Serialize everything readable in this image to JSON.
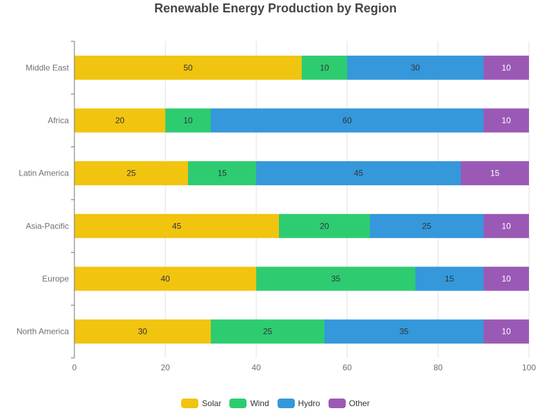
{
  "chart_data": {
    "type": "bar",
    "orientation": "horizontal",
    "stacked": true,
    "title": "Renewable Energy Production by Region",
    "categories": [
      "North America",
      "Europe",
      "Asia-Pacific",
      "Latin America",
      "Africa",
      "Middle East"
    ],
    "series": [
      {
        "name": "Solar",
        "color": "#f1c40f",
        "values": [
          30,
          40,
          45,
          25,
          20,
          50
        ]
      },
      {
        "name": "Wind",
        "color": "#2ecc71",
        "values": [
          25,
          35,
          20,
          15,
          10,
          10
        ]
      },
      {
        "name": "Hydro",
        "color": "#3498db",
        "values": [
          35,
          15,
          25,
          45,
          60,
          30
        ]
      },
      {
        "name": "Other",
        "color": "#9b59b6",
        "values": [
          10,
          10,
          10,
          15,
          10,
          10
        ]
      }
    ],
    "xlim": [
      0,
      100
    ],
    "x_ticks": [
      0,
      20,
      40,
      60,
      80,
      100
    ],
    "grid": true,
    "legend_position": "bottom"
  }
}
